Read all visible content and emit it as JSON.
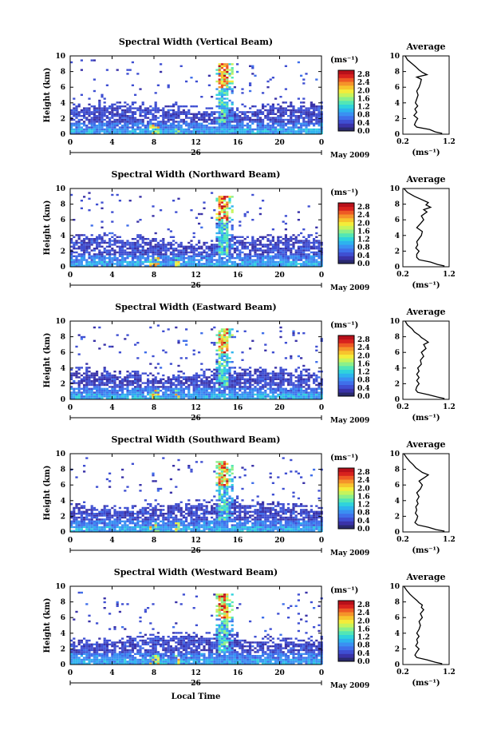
{
  "chart_data": {
    "type": "heatmap",
    "x_label": "Local Time",
    "y_label": "Height (km)",
    "x_ticks": [
      "0",
      "4",
      "8",
      "12",
      "16",
      "20",
      "0"
    ],
    "xlim": [
      0,
      24
    ],
    "y_ticks": [
      "0",
      "2",
      "4",
      "6",
      "8",
      "10"
    ],
    "ylim": [
      0,
      10
    ],
    "date_day": "26",
    "date_month_year": "May 2009",
    "colorbar": {
      "unit_label": "(ms⁻¹)",
      "ticks": [
        "0.0",
        "0.4",
        "0.8",
        "1.2",
        "1.6",
        "2.0",
        "2.4",
        "2.8"
      ],
      "range": [
        0.0,
        3.0
      ],
      "colors": [
        "#2a2a6e",
        "#3a33a8",
        "#3f4fd2",
        "#3f6fea",
        "#3a90f2",
        "#2db3ee",
        "#2fd3dc",
        "#52e6b6",
        "#8cf08a",
        "#c6f45c",
        "#f4ec3a",
        "#f7c42d",
        "#f5932a",
        "#ee5a24",
        "#d8221e",
        "#b8101a"
      ]
    },
    "profile": {
      "title": "Average",
      "x_label": "(ms⁻¹)",
      "x_ticks": [
        "0.2",
        "1.2"
      ],
      "xlim": [
        0.2,
        1.2
      ],
      "ylim": [
        0,
        10
      ]
    },
    "panels": [
      {
        "title": "Spectral Width (Vertical Beam)",
        "profile_heights": [
          0.1,
          0.3,
          0.6,
          0.9,
          1.2,
          1.6,
          2.0,
          2.4,
          2.8,
          3.2,
          3.6,
          4.0,
          4.5,
          5.0,
          5.5,
          6.0,
          6.5,
          7.0,
          7.3,
          7.6,
          7.9,
          8.2,
          8.6,
          9.0,
          9.5,
          10.0
        ],
        "profile_values": [
          1.05,
          0.9,
          0.78,
          0.5,
          0.45,
          0.48,
          0.52,
          0.44,
          0.5,
          0.46,
          0.52,
          0.47,
          0.5,
          0.53,
          0.5,
          0.55,
          0.58,
          0.6,
          0.5,
          0.72,
          0.62,
          0.55,
          0.48,
          0.4,
          0.3,
          0.25
        ]
      },
      {
        "title": "Spectral Width (Northward Beam)",
        "profile_heights": [
          0.1,
          0.3,
          0.6,
          0.9,
          1.2,
          1.6,
          2.0,
          2.4,
          2.8,
          3.2,
          3.6,
          4.0,
          4.5,
          5.0,
          5.5,
          6.0,
          6.5,
          7.0,
          7.3,
          7.6,
          7.9,
          8.2,
          8.6,
          9.0,
          9.5,
          10.0
        ],
        "profile_values": [
          1.1,
          0.95,
          0.8,
          0.55,
          0.5,
          0.5,
          0.55,
          0.48,
          0.52,
          0.5,
          0.55,
          0.6,
          0.62,
          0.5,
          0.58,
          0.65,
          0.6,
          0.72,
          0.65,
          0.8,
          0.7,
          0.75,
          0.6,
          0.45,
          0.3,
          0.22
        ]
      },
      {
        "title": "Spectral Width (Eastward Beam)",
        "profile_heights": [
          0.1,
          0.3,
          0.6,
          0.9,
          1.2,
          1.6,
          2.0,
          2.4,
          2.8,
          3.2,
          3.6,
          4.0,
          4.5,
          5.0,
          5.5,
          6.0,
          6.5,
          7.0,
          7.3,
          7.6,
          7.9,
          8.2,
          8.6,
          9.0,
          9.5,
          10.0
        ],
        "profile_values": [
          1.1,
          0.95,
          0.75,
          0.52,
          0.48,
          0.5,
          0.55,
          0.5,
          0.55,
          0.5,
          0.55,
          0.52,
          0.6,
          0.58,
          0.65,
          0.6,
          0.7,
          0.65,
          0.75,
          0.68,
          0.6,
          0.55,
          0.45,
          0.4,
          0.3,
          0.25
        ]
      },
      {
        "title": "Spectral Width (Southward Beam)",
        "profile_heights": [
          0.1,
          0.3,
          0.6,
          0.9,
          1.2,
          1.6,
          2.0,
          2.4,
          2.8,
          3.2,
          3.6,
          4.0,
          4.5,
          5.0,
          5.5,
          6.0,
          6.5,
          7.0,
          7.3,
          7.6,
          7.9,
          8.2,
          8.6,
          9.0,
          9.5,
          10.0
        ],
        "profile_values": [
          1.1,
          0.92,
          0.75,
          0.52,
          0.46,
          0.5,
          0.52,
          0.47,
          0.5,
          0.48,
          0.53,
          0.5,
          0.55,
          0.5,
          0.58,
          0.62,
          0.55,
          0.68,
          0.75,
          0.62,
          0.55,
          0.48,
          0.42,
          0.35,
          0.28,
          0.22
        ]
      },
      {
        "title": "Spectral Width (Westward Beam)",
        "profile_heights": [
          0.1,
          0.3,
          0.6,
          0.9,
          1.2,
          1.6,
          2.0,
          2.4,
          2.8,
          3.2,
          3.6,
          4.0,
          4.5,
          5.0,
          5.5,
          6.0,
          6.5,
          7.0,
          7.3,
          7.6,
          7.9,
          8.2,
          8.6,
          9.0,
          9.5,
          10.0
        ],
        "profile_values": [
          1.05,
          0.9,
          0.72,
          0.5,
          0.46,
          0.5,
          0.55,
          0.48,
          0.52,
          0.5,
          0.55,
          0.5,
          0.55,
          0.58,
          0.55,
          0.62,
          0.58,
          0.65,
          0.6,
          0.62,
          0.55,
          0.5,
          0.42,
          0.35,
          0.28,
          0.22
        ]
      }
    ]
  }
}
